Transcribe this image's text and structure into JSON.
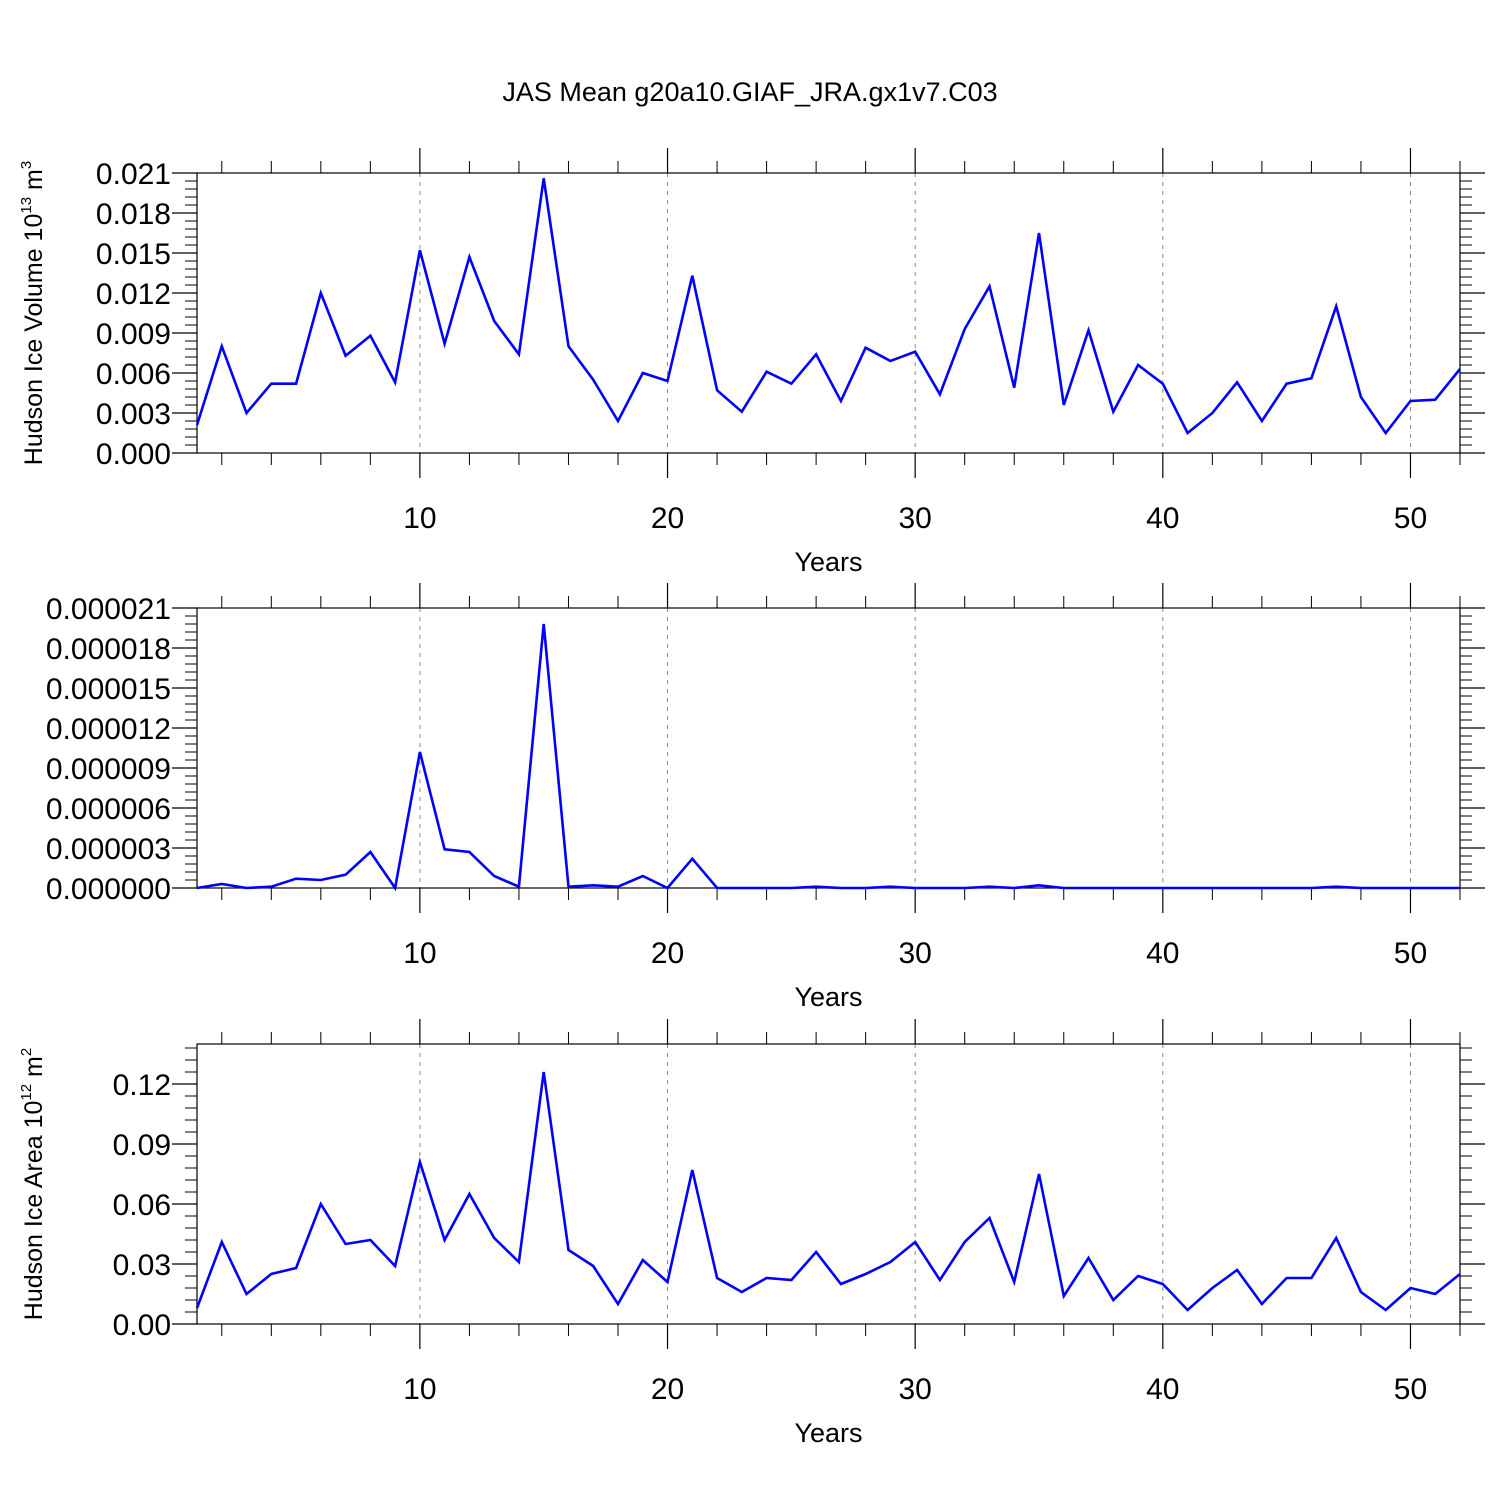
{
  "figure": {
    "title": "JAS Mean g20a10.GIAF_JRA.gx1v7.C03"
  },
  "colors": {
    "line": "#0000ff",
    "axis": "#000000",
    "grid": "#888888"
  },
  "chart_data": [
    {
      "type": "line",
      "title": "",
      "ylabel": "Hudson Ice Volume 10",
      "ylabel_sup": "13",
      "ylabel_unit": " m",
      "ylabel_unit_sup": "3",
      "xlabel": "Years",
      "xlim": [
        1,
        52
      ],
      "ylim": [
        0,
        0.021
      ],
      "x_ticks": [
        10,
        20,
        30,
        40,
        50
      ],
      "y_ticks": [
        "0.000",
        "0.003",
        "0.006",
        "0.009",
        "0.012",
        "0.015",
        "0.018",
        "0.021"
      ],
      "y_tick_values": [
        0,
        0.003,
        0.006,
        0.009,
        0.012,
        0.015,
        0.018,
        0.021
      ],
      "grid": "vertical dashed at major x ticks",
      "series": [
        {
          "x": [
            1,
            2,
            3,
            4,
            5,
            6,
            7,
            8,
            9,
            10,
            11,
            12,
            13,
            14,
            15,
            16,
            17,
            18,
            19,
            20,
            21,
            22,
            23,
            24,
            25,
            26,
            27,
            28,
            29,
            30,
            31,
            32,
            33,
            34,
            35,
            36,
            37,
            38,
            39,
            40,
            41,
            42,
            43,
            44,
            45,
            46,
            47,
            48,
            49,
            50,
            51,
            52
          ],
          "values": [
            0.0021,
            0.008,
            0.003,
            0.0052,
            0.0052,
            0.012,
            0.0073,
            0.0088,
            0.0053,
            0.0152,
            0.0082,
            0.0147,
            0.0099,
            0.0074,
            0.0206,
            0.008,
            0.0055,
            0.0024,
            0.006,
            0.0054,
            0.0133,
            0.0047,
            0.0031,
            0.0061,
            0.0052,
            0.0074,
            0.0039,
            0.0079,
            0.0069,
            0.0076,
            0.0044,
            0.0093,
            0.0125,
            0.0049,
            0.0165,
            0.0036,
            0.0092,
            0.0031,
            0.0066,
            0.0052,
            0.0015,
            0.003,
            0.0053,
            0.0024,
            0.0052,
            0.0056,
            0.011,
            0.0042,
            0.0015,
            0.0039,
            0.004,
            0.0063
          ]
        }
      ]
    },
    {
      "type": "line",
      "title": "",
      "ylabel": "",
      "xlabel": "Years",
      "xlim": [
        1,
        52
      ],
      "ylim": [
        0,
        2.1e-05
      ],
      "x_ticks": [
        10,
        20,
        30,
        40,
        50
      ],
      "y_ticks": [
        "0.000000",
        "0.000003",
        "0.000006",
        "0.000009",
        "0.000012",
        "0.000015",
        "0.000018",
        "0.000021"
      ],
      "y_tick_values": [
        0,
        3e-06,
        6e-06,
        9e-06,
        1.2e-05,
        1.5e-05,
        1.8e-05,
        2.1e-05
      ],
      "grid": "vertical dashed at major x ticks",
      "series": [
        {
          "x": [
            1,
            2,
            3,
            4,
            5,
            6,
            7,
            8,
            9,
            10,
            11,
            12,
            13,
            14,
            15,
            16,
            17,
            18,
            19,
            20,
            21,
            22,
            23,
            24,
            25,
            26,
            27,
            28,
            29,
            30,
            31,
            32,
            33,
            34,
            35,
            36,
            37,
            38,
            39,
            40,
            41,
            42,
            43,
            44,
            45,
            46,
            47,
            48,
            49,
            50,
            51,
            52
          ],
          "values": [
            0.0,
            3e-07,
            0.0,
            1e-07,
            7e-07,
            6e-07,
            1e-06,
            2.7e-06,
            0.0,
            1.02e-05,
            2.9e-06,
            2.7e-06,
            9e-07,
            1e-07,
            1.98e-05,
            1e-07,
            2e-07,
            1e-07,
            9e-07,
            0.0,
            2.2e-06,
            0.0,
            0.0,
            0.0,
            0.0,
            1e-07,
            0.0,
            0.0,
            1e-07,
            0.0,
            0.0,
            0.0,
            1e-07,
            0.0,
            2e-07,
            0.0,
            0.0,
            0.0,
            0.0,
            0.0,
            0.0,
            0.0,
            0.0,
            0.0,
            0.0,
            0.0,
            1e-07,
            0.0,
            0.0,
            0.0,
            0.0,
            0.0
          ]
        }
      ]
    },
    {
      "type": "line",
      "title": "",
      "ylabel": "Hudson Ice Area 10",
      "ylabel_sup": "12",
      "ylabel_unit": " m",
      "ylabel_unit_sup": "2",
      "xlabel": "Years",
      "xlim": [
        1,
        52
      ],
      "ylim": [
        0,
        0.14
      ],
      "x_ticks": [
        10,
        20,
        30,
        40,
        50
      ],
      "y_ticks": [
        "0.00",
        "0.03",
        "0.06",
        "0.09",
        "0.12"
      ],
      "y_tick_values": [
        0,
        0.03,
        0.06,
        0.09,
        0.12
      ],
      "grid": "vertical dashed at major x ticks",
      "series": [
        {
          "x": [
            1,
            2,
            3,
            4,
            5,
            6,
            7,
            8,
            9,
            10,
            11,
            12,
            13,
            14,
            15,
            16,
            17,
            18,
            19,
            20,
            21,
            22,
            23,
            24,
            25,
            26,
            27,
            28,
            29,
            30,
            31,
            32,
            33,
            34,
            35,
            36,
            37,
            38,
            39,
            40,
            41,
            42,
            43,
            44,
            45,
            46,
            47,
            48,
            49,
            50,
            51,
            52
          ],
          "values": [
            0.008,
            0.041,
            0.015,
            0.025,
            0.028,
            0.06,
            0.04,
            0.042,
            0.029,
            0.081,
            0.042,
            0.065,
            0.043,
            0.031,
            0.126,
            0.037,
            0.029,
            0.01,
            0.032,
            0.021,
            0.077,
            0.023,
            0.016,
            0.023,
            0.022,
            0.036,
            0.02,
            0.025,
            0.031,
            0.041,
            0.022,
            0.041,
            0.053,
            0.021,
            0.075,
            0.014,
            0.033,
            0.012,
            0.024,
            0.02,
            0.007,
            0.018,
            0.027,
            0.01,
            0.023,
            0.023,
            0.043,
            0.016,
            0.007,
            0.018,
            0.015,
            0.025
          ]
        }
      ]
    }
  ]
}
